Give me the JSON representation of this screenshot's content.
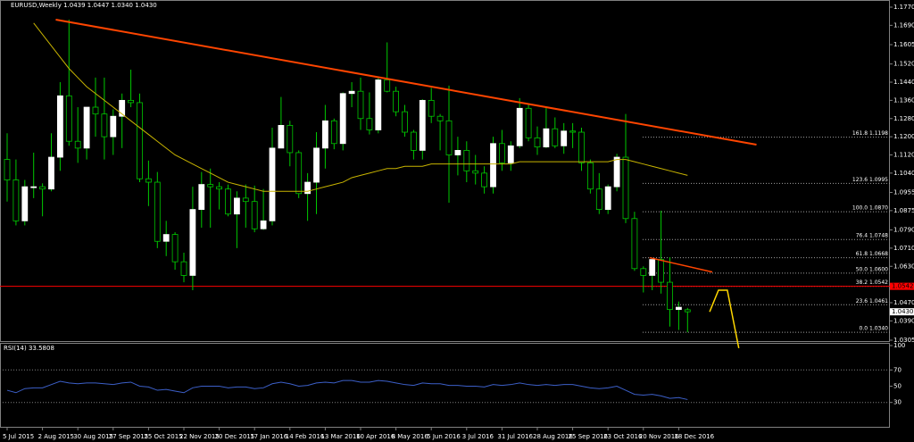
{
  "chart_data": {
    "type": "candlestick",
    "title": "EURUSD,Weekly  1.0439 1.0447 1.0340 1.0430",
    "categories": [
      "5 Jul 2015",
      null,
      null,
      null,
      "2 Aug 2015",
      null,
      null,
      null,
      "30 Aug 2015",
      null,
      null,
      null,
      "27 Sep 2015",
      null,
      null,
      null,
      "25 Oct 2015",
      null,
      null,
      null,
      "22 Nov 2015",
      null,
      null,
      null,
      "20 Dec 2015",
      null,
      null,
      null,
      "17 Jan 2016",
      null,
      null,
      null,
      "14 Feb 2016",
      null,
      null,
      null,
      "13 Mar 2016",
      null,
      null,
      null,
      "10 Apr 2016",
      null,
      null,
      null,
      "8 May 2016",
      null,
      null,
      null,
      "5 Jun 2016",
      null,
      null,
      null,
      "3 Jul 2016",
      null,
      null,
      null,
      "31 Jul 2016",
      null,
      null,
      null,
      "28 Aug 2016",
      null,
      null,
      null,
      "25 Sep 2016",
      null,
      null,
      null,
      "23 Oct 2016",
      null,
      null,
      null,
      "20 Nov 2016",
      null,
      null,
      null,
      "18 Dec 2016",
      null
    ],
    "open": [
      1.11,
      1.101,
      1.083,
      1.098,
      1.098,
      1.097,
      1.111,
      1.138,
      1.118,
      1.115,
      1.133,
      1.13,
      1.12,
      1.129,
      1.136,
      1.135,
      1.1015,
      1.1,
      1.074,
      1.077,
      1.065,
      1.059,
      1.088,
      1.099,
      1.098,
      1.097,
      1.086,
      1.093,
      1.0915,
      1.0795,
      1.083,
      1.115,
      1.125,
      1.113,
      1.095,
      1.1,
      1.115,
      1.127,
      1.117,
      1.139,
      1.14,
      1.128,
      1.123,
      1.145,
      1.14,
      1.131,
      1.122,
      1.114,
      1.136,
      1.129,
      1.127,
      1.112,
      1.114,
      1.105,
      1.104,
      1.098,
      1.117,
      1.1085,
      1.116,
      1.1325,
      1.1195,
      1.1155,
      1.1235,
      1.116,
      1.1225,
      1.122,
      1.1085,
      1.097,
      1.088,
      1.098,
      1.111,
      1.084,
      1.062,
      1.059,
      1.066,
      1.056,
      1.044,
      1.0439
    ],
    "high": [
      1.1215,
      1.11,
      1.101,
      1.113,
      1.0995,
      1.1215,
      1.144,
      1.1715,
      1.133,
      1.133,
      1.146,
      1.146,
      1.132,
      1.139,
      1.1495,
      1.139,
      1.1095,
      1.1045,
      1.083,
      1.078,
      1.069,
      1.098,
      1.1045,
      1.106,
      1.1,
      1.099,
      1.096,
      1.099,
      1.0985,
      1.097,
      1.124,
      1.1375,
      1.127,
      1.114,
      1.104,
      1.122,
      1.134,
      1.128,
      1.1395,
      1.144,
      1.146,
      1.1395,
      1.146,
      1.1615,
      1.142,
      1.134,
      1.123,
      1.1365,
      1.1415,
      1.13,
      1.1425,
      1.12,
      1.118,
      1.112,
      1.107,
      1.12,
      1.123,
      1.118,
      1.137,
      1.134,
      1.1245,
      1.133,
      1.1285,
      1.126,
      1.126,
      1.124,
      1.11,
      1.104,
      1.099,
      1.1125,
      1.13,
      1.087,
      1.063,
      1.066,
      1.0875,
      1.067,
      1.0475,
      1.0447
    ],
    "low": [
      1.0915,
      1.081,
      1.081,
      1.093,
      1.085,
      1.096,
      1.105,
      1.116,
      1.1085,
      1.11,
      1.12,
      1.11,
      1.112,
      1.115,
      1.133,
      1.1,
      1.0895,
      1.071,
      1.0675,
      1.0615,
      1.056,
      1.0525,
      1.08,
      1.08,
      1.088,
      1.085,
      1.071,
      1.08,
      1.078,
      1.079,
      1.081,
      1.115,
      1.107,
      1.093,
      1.083,
      1.086,
      1.106,
      1.1145,
      1.114,
      1.133,
      1.123,
      1.121,
      1.1215,
      1.1395,
      1.129,
      1.12,
      1.11,
      1.11,
      1.126,
      1.114,
      1.091,
      1.103,
      1.1,
      1.099,
      1.095,
      1.095,
      1.105,
      1.105,
      1.115,
      1.118,
      1.112,
      1.115,
      1.115,
      1.1125,
      1.115,
      1.105,
      1.095,
      1.086,
      1.086,
      1.096,
      1.082,
      1.061,
      1.0515,
      1.0525,
      1.051,
      1.0365,
      1.035,
      1.034
    ],
    "close": [
      1.101,
      1.083,
      1.098,
      1.098,
      1.097,
      1.111,
      1.138,
      1.118,
      1.115,
      1.133,
      1.13,
      1.12,
      1.129,
      1.136,
      1.135,
      1.1015,
      1.1,
      1.074,
      1.077,
      1.065,
      1.059,
      1.088,
      1.099,
      1.098,
      1.097,
      1.086,
      1.093,
      1.0915,
      1.0795,
      1.083,
      1.115,
      1.125,
      1.113,
      1.095,
      1.1,
      1.115,
      1.127,
      1.117,
      1.139,
      1.14,
      1.128,
      1.123,
      1.145,
      1.14,
      1.131,
      1.122,
      1.114,
      1.136,
      1.129,
      1.127,
      1.112,
      1.114,
      1.105,
      1.104,
      1.098,
      1.117,
      1.1085,
      1.116,
      1.1325,
      1.1195,
      1.1155,
      1.1235,
      1.116,
      1.1225,
      1.122,
      1.1085,
      1.097,
      1.088,
      1.098,
      1.111,
      1.084,
      1.062,
      1.059,
      1.066,
      1.056,
      1.044,
      1.045,
      1.043
    ],
    "ma": [
      null,
      null,
      null,
      1.17,
      1.165,
      1.16,
      1.155,
      1.15,
      1.146,
      1.142,
      1.139,
      1.136,
      1.133,
      1.13,
      1.127,
      1.124,
      1.121,
      1.118,
      1.115,
      1.112,
      1.11,
      1.108,
      1.106,
      1.104,
      1.102,
      1.1,
      1.099,
      1.098,
      1.097,
      1.096,
      1.096,
      1.096,
      1.096,
      1.096,
      1.096,
      1.097,
      1.098,
      1.099,
      1.1,
      1.102,
      1.103,
      1.104,
      1.105,
      1.106,
      1.106,
      1.107,
      1.107,
      1.107,
      1.108,
      1.108,
      1.108,
      1.108,
      1.108,
      1.108,
      1.108,
      1.108,
      1.108,
      1.108,
      1.109,
      1.109,
      1.109,
      1.109,
      1.109,
      1.109,
      1.109,
      1.109,
      1.109,
      1.109,
      1.109,
      1.11,
      1.11,
      1.109,
      1.108,
      1.107,
      1.106,
      1.105,
      1.104,
      1.103
    ],
    "ma_color": "#c8b400",
    "bull_color": "#ffffff",
    "bear_color": "#000000",
    "wick_color": "#00c800",
    "ylim": [
      1.0305,
      1.177
    ],
    "yticks": [
      {
        "value": 1.177,
        "label": "1.1770"
      },
      {
        "value": 1.169,
        "label": "1.1690"
      },
      1.1605,
      {
        "value": 1.152,
        "label": "1.1520"
      },
      {
        "value": 1.144,
        "label": "1.1440"
      },
      {
        "value": 1.136,
        "label": "1.1360"
      },
      {
        "value": 1.128,
        "label": "1.1280"
      },
      {
        "value": 1.12,
        "label": "1.1200"
      },
      {
        "value": 1.112,
        "label": "1.1120"
      },
      {
        "value": 1.104,
        "label": "1.1040"
      },
      1.0955,
      1.0875,
      {
        "value": 1.079,
        "label": "1.0790"
      },
      {
        "value": 1.071,
        "label": "1.0710"
      },
      {
        "value": 1.063,
        "label": "1.0630"
      },
      {
        "value": 1.047,
        "label": "1.0470"
      },
      {
        "value": 1.039,
        "label": "1.0390"
      },
      1.0305
    ],
    "price_tags": [
      {
        "value": 1.043,
        "label": "1.0430",
        "color": "#ffffff"
      },
      {
        "value": 1.0542,
        "label": "1.0542",
        "color": "#ff0000"
      }
    ],
    "hline": {
      "value": 1.0542,
      "color": "#ff0000"
    },
    "trendlines": [
      {
        "x": [
          5.5,
          84.8
        ],
        "y": [
          1.1715,
          1.1165
        ],
        "color": "#ff4500"
      },
      {
        "x": [
          72.7,
          79.8
        ],
        "y": [
          1.0668,
          1.0605
        ],
        "color": "#ff4500"
      }
    ],
    "projection": {
      "x": [
        79.5,
        80.5,
        81.5,
        82.8
      ],
      "y": [
        1.043,
        1.0525,
        1.0525,
        1.027
      ],
      "color": "#ffd700"
    },
    "fib": [
      {
        "label": "161.8 1.1198",
        "value": 1.1198
      },
      {
        "label": "123.6 1.0995",
        "value": 1.0995
      },
      {
        "label": "100.0 1.0870",
        "value": 1.087
      },
      {
        "label": "76.4 1.0748",
        "value": 1.0748
      },
      {
        "label": "61.8 1.0668",
        "value": 1.0668
      },
      {
        "label": "50.0 1.0600",
        "value": 1.06
      },
      {
        "label": "38.2 1.0542",
        "value": 1.0542
      },
      {
        "label": "23.6 1.0461",
        "value": 1.0461
      },
      {
        "label": "0.0 1.0340",
        "value": 1.034
      }
    ],
    "rsi": {
      "title": "RSI(14) 33.5808",
      "color": "#3c5fc8",
      "ylim": [
        0,
        100
      ],
      "yticks": [
        100,
        70,
        50,
        30
      ],
      "levels": [
        70,
        30
      ],
      "values": [
        45,
        42,
        47,
        48,
        48,
        52,
        56,
        54,
        53,
        54,
        54,
        53,
        52,
        54,
        55,
        50,
        49,
        45,
        46,
        44,
        42,
        48,
        50,
        50,
        50,
        48,
        49,
        49,
        47,
        48,
        53,
        55,
        53,
        50,
        51,
        54,
        55,
        54,
        57,
        57,
        55,
        55,
        57,
        56,
        54,
        52,
        51,
        54,
        53,
        53,
        51,
        51,
        50,
        50,
        49,
        52,
        51,
        52,
        54,
        52,
        51,
        52,
        51,
        52,
        52,
        50,
        48,
        47,
        48,
        50,
        45,
        40,
        39,
        40,
        38,
        35,
        36,
        33.5808
      ]
    }
  }
}
